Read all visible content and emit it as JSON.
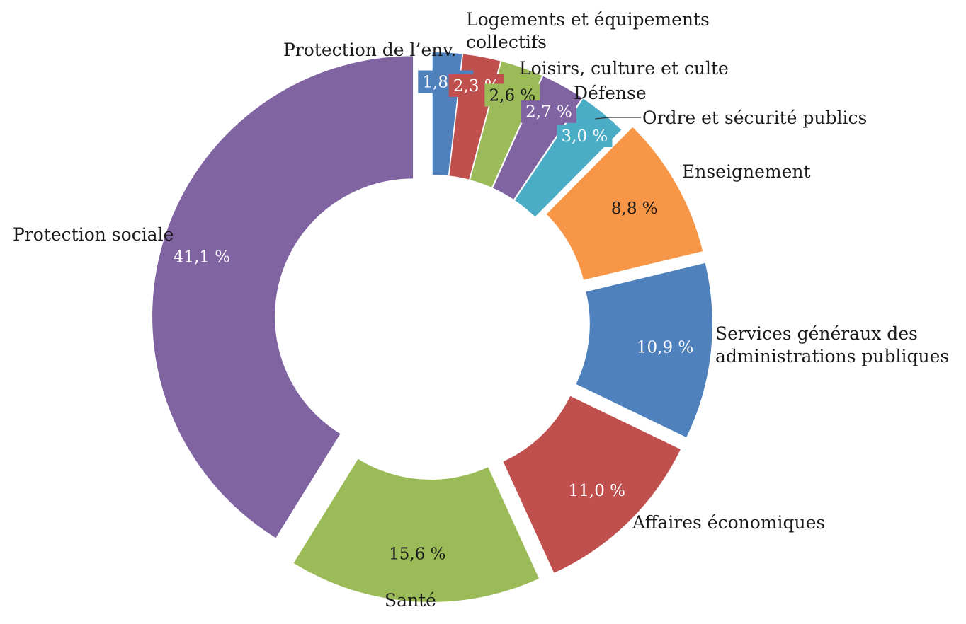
{
  "chart_data": {
    "type": "pie",
    "variant": "donut-exploded",
    "title": "",
    "slices": [
      {
        "label": "Protection de l’env.",
        "value": 1.8,
        "display": "1,8 %",
        "color": "#4f81bd",
        "label_color": "#ffffff",
        "box": true
      },
      {
        "label": "Logements et équipements collectifs",
        "value": 2.3,
        "display": "2,3 %",
        "color": "#c0504d",
        "label_color": "#ffffff",
        "box": true
      },
      {
        "label": "Loisirs, culture et culte",
        "value": 2.6,
        "display": "2,6 %",
        "color": "#9bbb59",
        "label_color": "#1a1a1a",
        "box": true
      },
      {
        "label": "Défense",
        "value": 2.7,
        "display": "2,7 %",
        "color": "#8064a2",
        "label_color": "#ffffff",
        "box": true
      },
      {
        "label": "Ordre et sécurité publics",
        "value": 3.0,
        "display": "3,0 %",
        "color": "#4bacc6",
        "label_color": "#ffffff",
        "box": true
      },
      {
        "label": "Enseignement",
        "value": 8.8,
        "display": "8,8 %",
        "color": "#f79646",
        "label_color": "#1a1a1a",
        "box": false
      },
      {
        "label": "Services généraux des administrations publiques",
        "value": 10.9,
        "display": "10,9 %",
        "color": "#4f81bd",
        "label_color": "#ffffff",
        "box": false
      },
      {
        "label": "Affaires économiques",
        "value": 11.0,
        "display": "11,0 %",
        "color": "#c0504d",
        "label_color": "#ffffff",
        "box": false
      },
      {
        "label": "Santé",
        "value": 15.6,
        "display": "15,6 %",
        "color": "#9bbb59",
        "label_color": "#1a1a1a",
        "box": false
      },
      {
        "label": "Protection sociale",
        "value": 41.1,
        "display": "41,1 %",
        "color": "#8064a2",
        "label_color": "#ffffff",
        "box": false
      }
    ],
    "legend": "none"
  }
}
